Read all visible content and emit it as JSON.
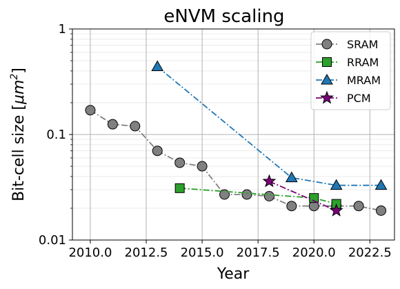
{
  "chart_data": {
    "type": "line",
    "title": "eNVM scaling",
    "xlabel": "Year",
    "ylabel": "Bit-cell size [μm²]",
    "ylabel_main": "Bit-cell size [",
    "ylabel_unit": "μm",
    "ylabel_exp": "2",
    "ylabel_close": "]",
    "yscale": "log",
    "xlim": [
      2009.2,
      2023.6
    ],
    "ylim": [
      0.01,
      1
    ],
    "xticks": [
      2010.0,
      2012.5,
      2015.0,
      2017.5,
      2020.0,
      2022.5
    ],
    "xtick_labels": [
      "2010.0",
      "2012.5",
      "2015.0",
      "2017.5",
      "2020.0",
      "2022.5"
    ],
    "yticks": [
      0.01,
      0.1,
      1
    ],
    "ytick_labels": [
      "0.01",
      "0.1",
      "1"
    ],
    "grid": true,
    "legend_position": "top-right",
    "series": [
      {
        "name": "SRAM",
        "color": "#808080",
        "marker": "circle",
        "line_style": "dashdot",
        "x": [
          2010,
          2011,
          2012,
          2013,
          2014,
          2015,
          2016,
          2017,
          2018,
          2019,
          2020,
          2021,
          2022,
          2023
        ],
        "y": [
          0.17,
          0.125,
          0.12,
          0.07,
          0.054,
          0.05,
          0.027,
          0.027,
          0.026,
          0.021,
          0.021,
          0.021,
          0.021,
          0.019
        ]
      },
      {
        "name": "RRAM",
        "color": "#2ca02c",
        "marker": "square",
        "line_style": "dashdot",
        "x": [
          2014,
          2020,
          2021
        ],
        "y": [
          0.031,
          0.025,
          0.022
        ]
      },
      {
        "name": "MRAM",
        "color": "#1f77b4",
        "marker": "triangle",
        "line_style": "dashdot",
        "x": [
          2013,
          2019,
          2021,
          2023
        ],
        "y": [
          0.44,
          0.039,
          0.033,
          0.033
        ]
      },
      {
        "name": "PCM",
        "color": "#7b007b",
        "marker": "star",
        "line_style": "dashdot",
        "x": [
          2018,
          2021
        ],
        "y": [
          0.036,
          0.019
        ]
      }
    ]
  }
}
